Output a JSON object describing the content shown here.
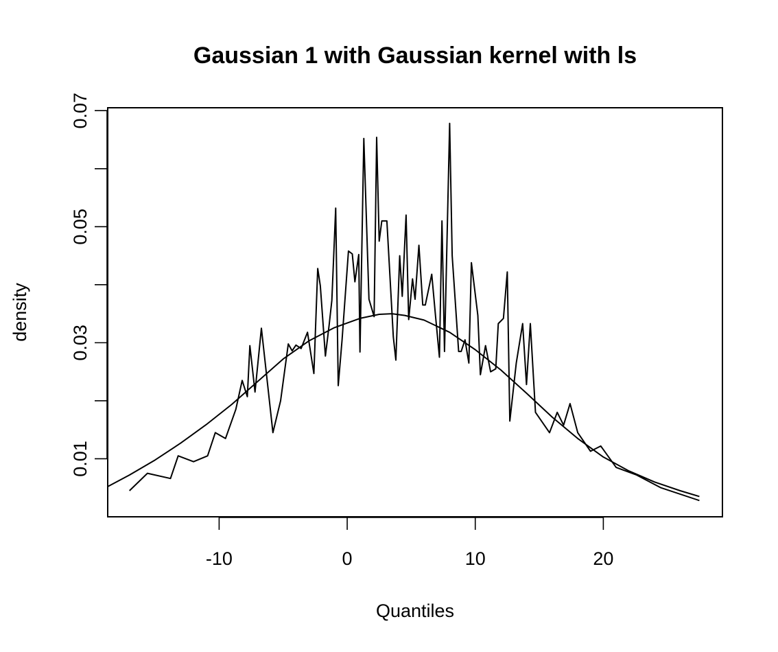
{
  "chart_data": {
    "type": "line",
    "title": "Gaussian 1 with Gaussian kernel with ls",
    "xlabel": "Quantiles",
    "ylabel": "density",
    "xlim": [
      -18.7,
      29.3
    ],
    "ylim": [
      0.0,
      0.0705
    ],
    "x_ticks": [
      -10,
      0,
      10,
      20
    ],
    "x_tick_labels": [
      "-10",
      "0",
      "10",
      "20"
    ],
    "y_ticks": [
      0.01,
      0.02,
      0.03,
      0.04,
      0.05,
      0.06,
      0.07
    ],
    "y_tick_labels": [
      "0.01",
      "",
      "0.03",
      "",
      "0.05",
      "",
      "0.07"
    ],
    "grid": false,
    "series": [
      {
        "x": [
          -17.0,
          -15.6,
          -13.8,
          -13.2,
          -12.0,
          -10.9,
          -10.3,
          -9.5,
          -8.7,
          -8.2,
          -7.8,
          -7.6,
          -7.2,
          -6.7,
          -5.8,
          -5.2,
          -4.6,
          -4.3,
          -4.0,
          -3.6,
          -3.1,
          -2.6,
          -2.3,
          -2.1,
          -1.7,
          -1.4,
          -1.2,
          -0.9,
          -0.7,
          -0.4,
          0.1,
          0.4,
          0.6,
          0.9,
          1.0,
          1.3,
          1.7,
          2.1,
          2.3,
          2.5,
          2.7,
          3.1,
          3.6,
          3.8,
          4.1,
          4.3,
          4.6,
          4.8,
          5.1,
          5.3,
          5.6,
          5.9,
          6.1,
          6.6,
          6.9,
          7.2,
          7.4,
          7.6,
          8.0,
          8.2,
          8.7,
          8.9,
          9.2,
          9.5,
          9.7,
          10.2,
          10.4,
          10.8,
          11.2,
          11.6,
          11.8,
          12.2,
          12.5,
          12.7,
          13.2,
          13.7,
          14.0,
          14.3,
          14.7,
          15.8,
          16.4,
          16.9,
          17.4,
          18.0,
          19.0,
          19.8,
          21.0,
          22.6,
          24.5,
          27.5
        ],
        "y": [
          0.0045,
          0.0075,
          0.0066,
          0.0105,
          0.0095,
          0.0105,
          0.0145,
          0.0135,
          0.0185,
          0.0235,
          0.0207,
          0.0295,
          0.0215,
          0.0325,
          0.0145,
          0.02,
          0.0298,
          0.0286,
          0.0296,
          0.029,
          0.0318,
          0.0247,
          0.0428,
          0.0398,
          0.0277,
          0.0332,
          0.0373,
          0.0532,
          0.0226,
          0.0305,
          0.0458,
          0.0453,
          0.0405,
          0.0452,
          0.0284,
          0.0652,
          0.0375,
          0.0345,
          0.0654,
          0.0475,
          0.051,
          0.051,
          0.031,
          0.027,
          0.045,
          0.038,
          0.052,
          0.034,
          0.041,
          0.0375,
          0.0468,
          0.0365,
          0.0365,
          0.0418,
          0.0345,
          0.0275,
          0.051,
          0.0285,
          0.0678,
          0.045,
          0.0285,
          0.0285,
          0.0305,
          0.0265,
          0.0438,
          0.0347,
          0.0245,
          0.0295,
          0.025,
          0.0255,
          0.0333,
          0.0342,
          0.0422,
          0.0165,
          0.0265,
          0.0333,
          0.0228,
          0.0333,
          0.018,
          0.0145,
          0.018,
          0.0158,
          0.0195,
          0.0145,
          0.0113,
          0.0122,
          0.0085,
          0.0072,
          0.005,
          0.0028
        ]
      },
      {
        "x": [
          -18.7,
          -17.0,
          -15.0,
          -13.0,
          -11.0,
          -9.0,
          -7.0,
          -5.0,
          -3.0,
          -1.0,
          1.0,
          2.5,
          3.5,
          4.5,
          6.0,
          8.0,
          10.0,
          12.0,
          14.0,
          16.0,
          18.0,
          20.0,
          22.0,
          24.0,
          26.0,
          27.5
        ],
        "y": [
          0.0052,
          0.0072,
          0.0098,
          0.0127,
          0.0159,
          0.0194,
          0.0233,
          0.0272,
          0.0303,
          0.0326,
          0.0342,
          0.0349,
          0.035,
          0.0347,
          0.0339,
          0.0318,
          0.0288,
          0.0253,
          0.0213,
          0.0172,
          0.0135,
          0.0103,
          0.0079,
          0.006,
          0.0045,
          0.0035
        ]
      }
    ]
  }
}
